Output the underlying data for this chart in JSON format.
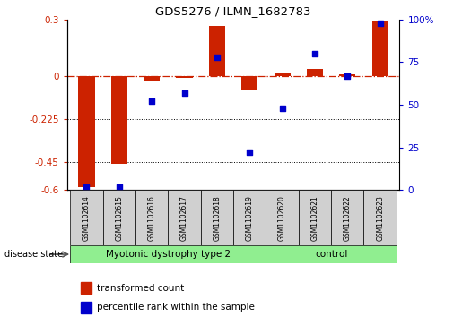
{
  "title": "GDS5276 / ILMN_1682783",
  "samples": [
    "GSM1102614",
    "GSM1102615",
    "GSM1102616",
    "GSM1102617",
    "GSM1102618",
    "GSM1102619",
    "GSM1102620",
    "GSM1102621",
    "GSM1102622",
    "GSM1102623"
  ],
  "red_values": [
    -0.585,
    -0.46,
    -0.02,
    -0.01,
    0.265,
    -0.07,
    0.02,
    0.04,
    0.01,
    0.29
  ],
  "blue_values": [
    2,
    2,
    52,
    57,
    78,
    22,
    48,
    80,
    67,
    98
  ],
  "left_ylim": [
    -0.6,
    0.3
  ],
  "right_ylim": [
    0,
    100
  ],
  "left_yticks": [
    -0.6,
    -0.45,
    -0.225,
    0,
    0.3
  ],
  "right_yticks": [
    0,
    25,
    50,
    75,
    100
  ],
  "left_yticklabels": [
    "-0.6",
    "-0.45",
    "-0.225",
    "0",
    "0.3"
  ],
  "right_yticklabels": [
    "0",
    "25",
    "50",
    "75",
    "100%"
  ],
  "hline_y": 0,
  "dotted_lines": [
    -0.225,
    -0.45
  ],
  "group1_label": "Myotonic dystrophy type 2",
  "group1_indices": [
    0,
    1,
    2,
    3,
    4,
    5
  ],
  "group2_label": "control",
  "group2_indices": [
    6,
    7,
    8,
    9
  ],
  "group_color": "#90EE90",
  "disease_state_label": "disease state",
  "bar_color": "#CC2200",
  "dot_color": "#0000CC",
  "bar_width": 0.5,
  "dot_size": 25,
  "box_color": "#d0d0d0",
  "legend_red_label": "transformed count",
  "legend_blue_label": "percentile rank within the sample"
}
